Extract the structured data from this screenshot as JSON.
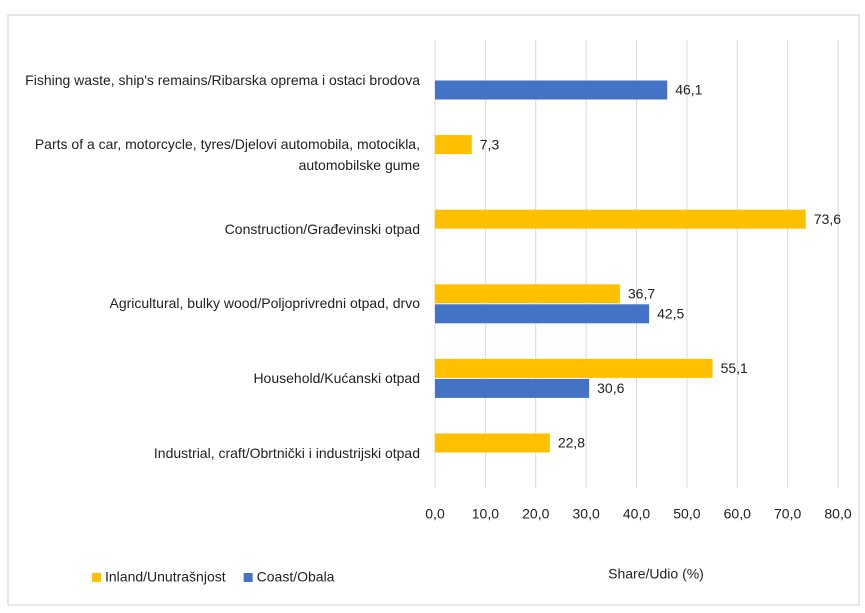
{
  "chart_data": {
    "type": "bar",
    "orientation": "horizontal",
    "categories": [
      "Fishing waste, ship's remains/Ribarska oprema i ostaci brodova",
      "Parts of a car, motorcycle, tyres/Djelovi automobila, motocikla, automobilske gume",
      "Construction/Građevinski otpad",
      "Agricultural, bulky wood/Poljoprivredni otpad, drvo",
      "Household/Kućanski otpad",
      "Industrial, craft/Obrtnički i industrijski otpad"
    ],
    "series": [
      {
        "name": "Inland/Unutrašnjost",
        "color": "#ffc000",
        "values": [
          null,
          7.3,
          73.6,
          36.7,
          55.1,
          22.8
        ],
        "value_labels": [
          null,
          "7,3",
          "73,6",
          "36,7",
          "55,1",
          "22,8"
        ]
      },
      {
        "name": "Coast/Obala",
        "color": "#4472c4",
        "values": [
          46.1,
          null,
          null,
          42.5,
          30.6,
          null
        ],
        "value_labels": [
          "46,1",
          null,
          null,
          "42,5",
          "30,6",
          null
        ]
      }
    ],
    "xlabel": "Share/Udio (%)",
    "xlim": [
      0,
      80
    ],
    "xticks": [
      {
        "value": 0,
        "label": "0,0"
      },
      {
        "value": 10,
        "label": "10,0"
      },
      {
        "value": 20,
        "label": "20,0"
      },
      {
        "value": 30,
        "label": "30,0"
      },
      {
        "value": 40,
        "label": "40,0"
      },
      {
        "value": 50,
        "label": "50,0"
      },
      {
        "value": 60,
        "label": "60,0"
      },
      {
        "value": 70,
        "label": "70,0"
      },
      {
        "value": 80,
        "label": "80,0"
      }
    ],
    "grid": true,
    "legend": "bottom-left"
  }
}
